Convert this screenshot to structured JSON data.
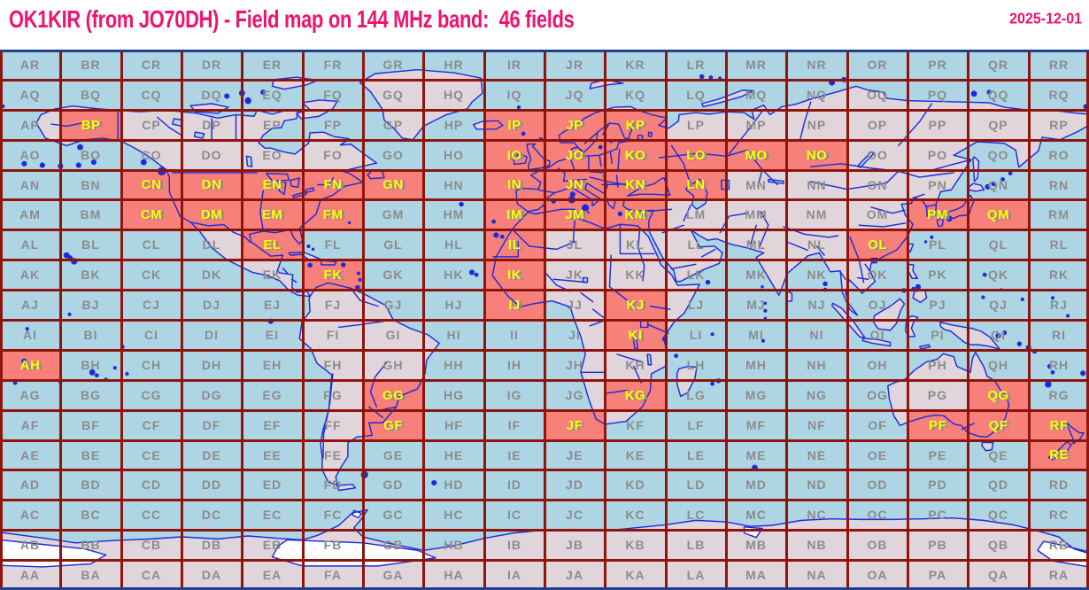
{
  "header": {
    "title": "OK1KIR (from JO70DH) - Field map on 144 MHz band:  46 fields",
    "callsign": "OK1KIR",
    "locator": "JO70DH",
    "band": "144 MHz",
    "field_count": 46,
    "date": "2025-12-01"
  },
  "grid": {
    "columns": "ABCDEFGHIJKLMNOPQR",
    "row_order_top_to_bottom": "RQPONMLKJIHGFEDCBA",
    "rows": [
      {
        "row": "R",
        "labels": [
          "AR",
          "BR",
          "CR",
          "DR",
          "ER",
          "FR",
          "GR",
          "HR",
          "IR",
          "JR",
          "KR",
          "LR",
          "MR",
          "NR",
          "OR",
          "PR",
          "QR",
          "RR"
        ]
      },
      {
        "row": "Q",
        "labels": [
          "AQ",
          "BQ",
          "CQ",
          "DQ",
          "EQ",
          "FQ",
          "GQ",
          "HQ",
          "IQ",
          "JQ",
          "KQ",
          "LQ",
          "MQ",
          "NQ",
          "OQ",
          "PQ",
          "QQ",
          "RQ"
        ]
      },
      {
        "row": "P",
        "labels": [
          "AP",
          "BP",
          "CP",
          "DP",
          "EP",
          "FP",
          "GP",
          "HP",
          "IP",
          "JP",
          "KP",
          "LP",
          "MP",
          "NP",
          "OP",
          "PP",
          "QP",
          "RP"
        ]
      },
      {
        "row": "O",
        "labels": [
          "AO",
          "BO",
          "CO",
          "DO",
          "EO",
          "FO",
          "GO",
          "HO",
          "IO",
          "JO",
          "KO",
          "LO",
          "MO",
          "NO",
          "OO",
          "PO",
          "QO",
          "RO"
        ]
      },
      {
        "row": "N",
        "labels": [
          "AN",
          "BN",
          "CN",
          "DN",
          "EN",
          "FN",
          "GN",
          "HN",
          "IN",
          "JN",
          "KN",
          "LN",
          "MN",
          "NN",
          "ON",
          "PN",
          "QN",
          "RN"
        ]
      },
      {
        "row": "M",
        "labels": [
          "AM",
          "BM",
          "CM",
          "DM",
          "EM",
          "FM",
          "GM",
          "HM",
          "IM",
          "JM",
          "KM",
          "LM",
          "MM",
          "NM",
          "OM",
          "PM",
          "QM",
          "RM"
        ]
      },
      {
        "row": "L",
        "labels": [
          "AL",
          "BL",
          "CL",
          "DL",
          "EL",
          "FL",
          "GL",
          "HL",
          "IL",
          "JL",
          "KL",
          "LL",
          "ML",
          "NL",
          "OL",
          "PL",
          "QL",
          "RL"
        ]
      },
      {
        "row": "K",
        "labels": [
          "AK",
          "BK",
          "CK",
          "DK",
          "EK",
          "FK",
          "GK",
          "HK",
          "IK",
          "JK",
          "KK",
          "LK",
          "MK",
          "NK",
          "OK",
          "PK",
          "QK",
          "RK"
        ]
      },
      {
        "row": "J",
        "labels": [
          "AJ",
          "BJ",
          "CJ",
          "DJ",
          "EJ",
          "FJ",
          "GJ",
          "HJ",
          "IJ",
          "JJ",
          "KJ",
          "LJ",
          "MJ",
          "NJ",
          "OJ",
          "PJ",
          "QJ",
          "RJ"
        ]
      },
      {
        "row": "I",
        "labels": [
          "AI",
          "BI",
          "CI",
          "DI",
          "EI",
          "FI",
          "GI",
          "HI",
          "II",
          "JI",
          "KI",
          "LI",
          "MI",
          "NI",
          "OI",
          "PI",
          "QI",
          "RI"
        ]
      },
      {
        "row": "H",
        "labels": [
          "AH",
          "BH",
          "CH",
          "DH",
          "EH",
          "FH",
          "GH",
          "HH",
          "IH",
          "JH",
          "KH",
          "LH",
          "MH",
          "NH",
          "OH",
          "PH",
          "QH",
          "RH"
        ]
      },
      {
        "row": "G",
        "labels": [
          "AG",
          "BG",
          "CG",
          "DG",
          "EG",
          "FG",
          "GG",
          "HG",
          "IG",
          "JG",
          "KG",
          "LG",
          "MG",
          "NG",
          "OG",
          "PG",
          "QG",
          "RG"
        ]
      },
      {
        "row": "F",
        "labels": [
          "AF",
          "BF",
          "CF",
          "DF",
          "EF",
          "FF",
          "GF",
          "HF",
          "IF",
          "JF",
          "KF",
          "LF",
          "MF",
          "NF",
          "OF",
          "PF",
          "QF",
          "RF"
        ]
      },
      {
        "row": "E",
        "labels": [
          "AE",
          "BE",
          "CE",
          "DE",
          "EE",
          "FE",
          "GE",
          "HE",
          "IE",
          "JE",
          "KE",
          "LE",
          "ME",
          "NE",
          "OE",
          "PE",
          "QE",
          "RE"
        ]
      },
      {
        "row": "D",
        "labels": [
          "AD",
          "BD",
          "CD",
          "DD",
          "ED",
          "FD",
          "GD",
          "HD",
          "ID",
          "JD",
          "KD",
          "LD",
          "MD",
          "ND",
          "OD",
          "PD",
          "QD",
          "RD"
        ]
      },
      {
        "row": "C",
        "labels": [
          "AC",
          "BC",
          "CC",
          "DC",
          "EC",
          "FC",
          "GC",
          "HC",
          "IC",
          "JC",
          "KC",
          "LC",
          "MC",
          "NC",
          "OC",
          "PC",
          "QC",
          "RC"
        ]
      },
      {
        "row": "B",
        "labels": [
          "AB",
          "BB",
          "CB",
          "DB",
          "EB",
          "FB",
          "GB",
          "HB",
          "IB",
          "JB",
          "KB",
          "LB",
          "MB",
          "NB",
          "OB",
          "PB",
          "QB",
          "RB"
        ]
      },
      {
        "row": "A",
        "labels": [
          "AA",
          "BA",
          "CA",
          "DA",
          "EA",
          "FA",
          "GA",
          "HA",
          "IA",
          "JA",
          "KA",
          "LA",
          "MA",
          "NA",
          "OA",
          "PA",
          "QA",
          "RA"
        ]
      }
    ],
    "worked_fields": [
      "BP",
      "IP",
      "JP",
      "KP",
      "IO",
      "JO",
      "KO",
      "LO",
      "MO",
      "NO",
      "CN",
      "DN",
      "EN",
      "FN",
      "GN",
      "IN",
      "JN",
      "KN",
      "LN",
      "CM",
      "DM",
      "EM",
      "FM",
      "IM",
      "JM",
      "KM",
      "PM",
      "QM",
      "EL",
      "IL",
      "OL",
      "FK",
      "IK",
      "IJ",
      "KJ",
      "KI",
      "AH",
      "GG",
      "KG",
      "QG",
      "GF",
      "JF",
      "PF",
      "QF",
      "RF",
      "RE"
    ]
  },
  "colors": {
    "sea": "#ADD5E4",
    "land": "#E0D5DA",
    "ice_shelf": "#FFFFFF",
    "worked": "#F7807A",
    "grid_line": "#8F150C",
    "frame_line": "#1E3F8F",
    "coastline": "#1C2BDB",
    "label": "#8C8C8C",
    "worked_label": "#FFFF00",
    "title": "#EE146E"
  }
}
